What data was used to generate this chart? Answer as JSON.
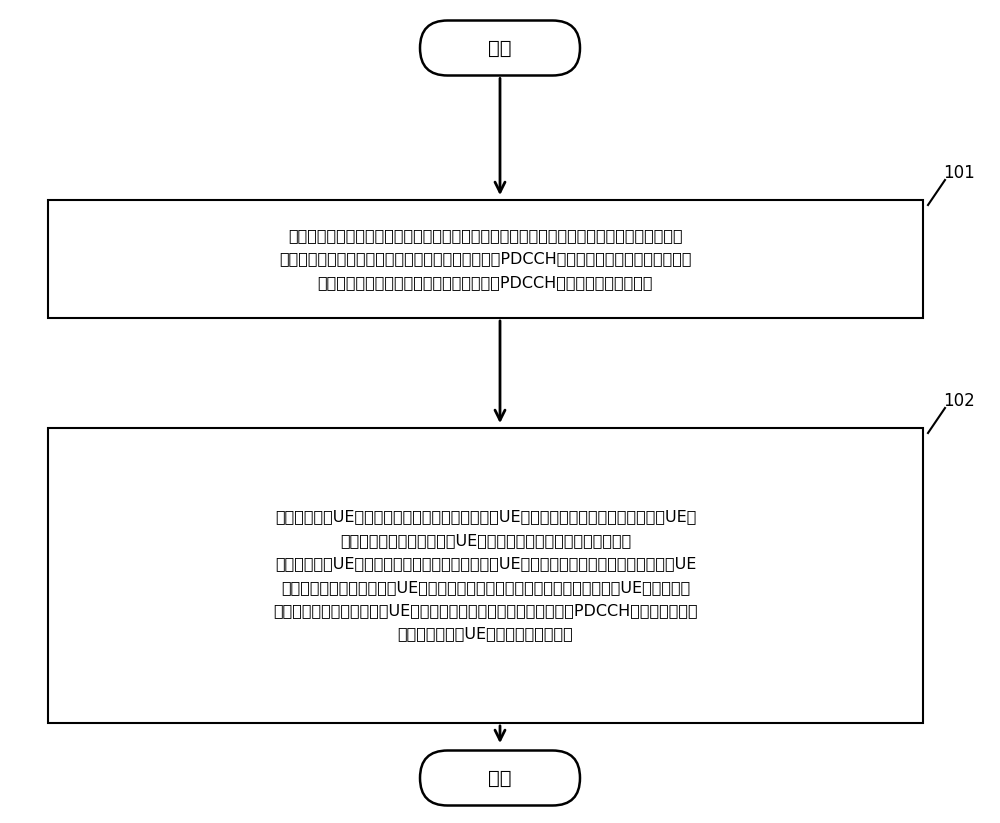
{
  "background_color": "#ffffff",
  "start_text": "开始",
  "end_text": "结束",
  "box1_text": "网络侧预先为每个扇区分别配置专用于提供网络覆盖的全覆盖载波，其中，相邻扇区的所述全\n覆盖载波不相同；配置各扇区的所述全覆盖载波上的PDCCH采用正常功率发送，配置各扇区\n除所述全覆盖载波之外的其他成员载波上的PDCCH采用预设的降功率发送",
  "box2_text": "当小区的边缘UE接入网络后，网络侧利用所述边缘UE所在扇区的全覆盖载波为所述边缘UE配\n置主载波，并配置所述边缘UE的调度授权方式为跨载波调度方式；\n当小区的中心UE接入网络后，网络侧利用所述中心UE所在扇区的非全覆盖载波为所述中心UE\n配置主载波，如果所述中心UE的聚合载波中包含全覆盖载波，则根据所述中心UE的各聚合载\n波的信道质量以及所述中心UE所在扇区聚合载波中的全覆盖载波上的PDCCH负载状况，确定\n是否对所述中心UE采用跨载波调度方式",
  "label1": "101",
  "label2": "102",
  "arrow_color": "#000000",
  "box_edge_color": "#000000",
  "box_fill_color": "#ffffff",
  "text_color": "#000000",
  "font_size_box": 11.5,
  "font_size_oval": 14,
  "font_size_label": 12
}
